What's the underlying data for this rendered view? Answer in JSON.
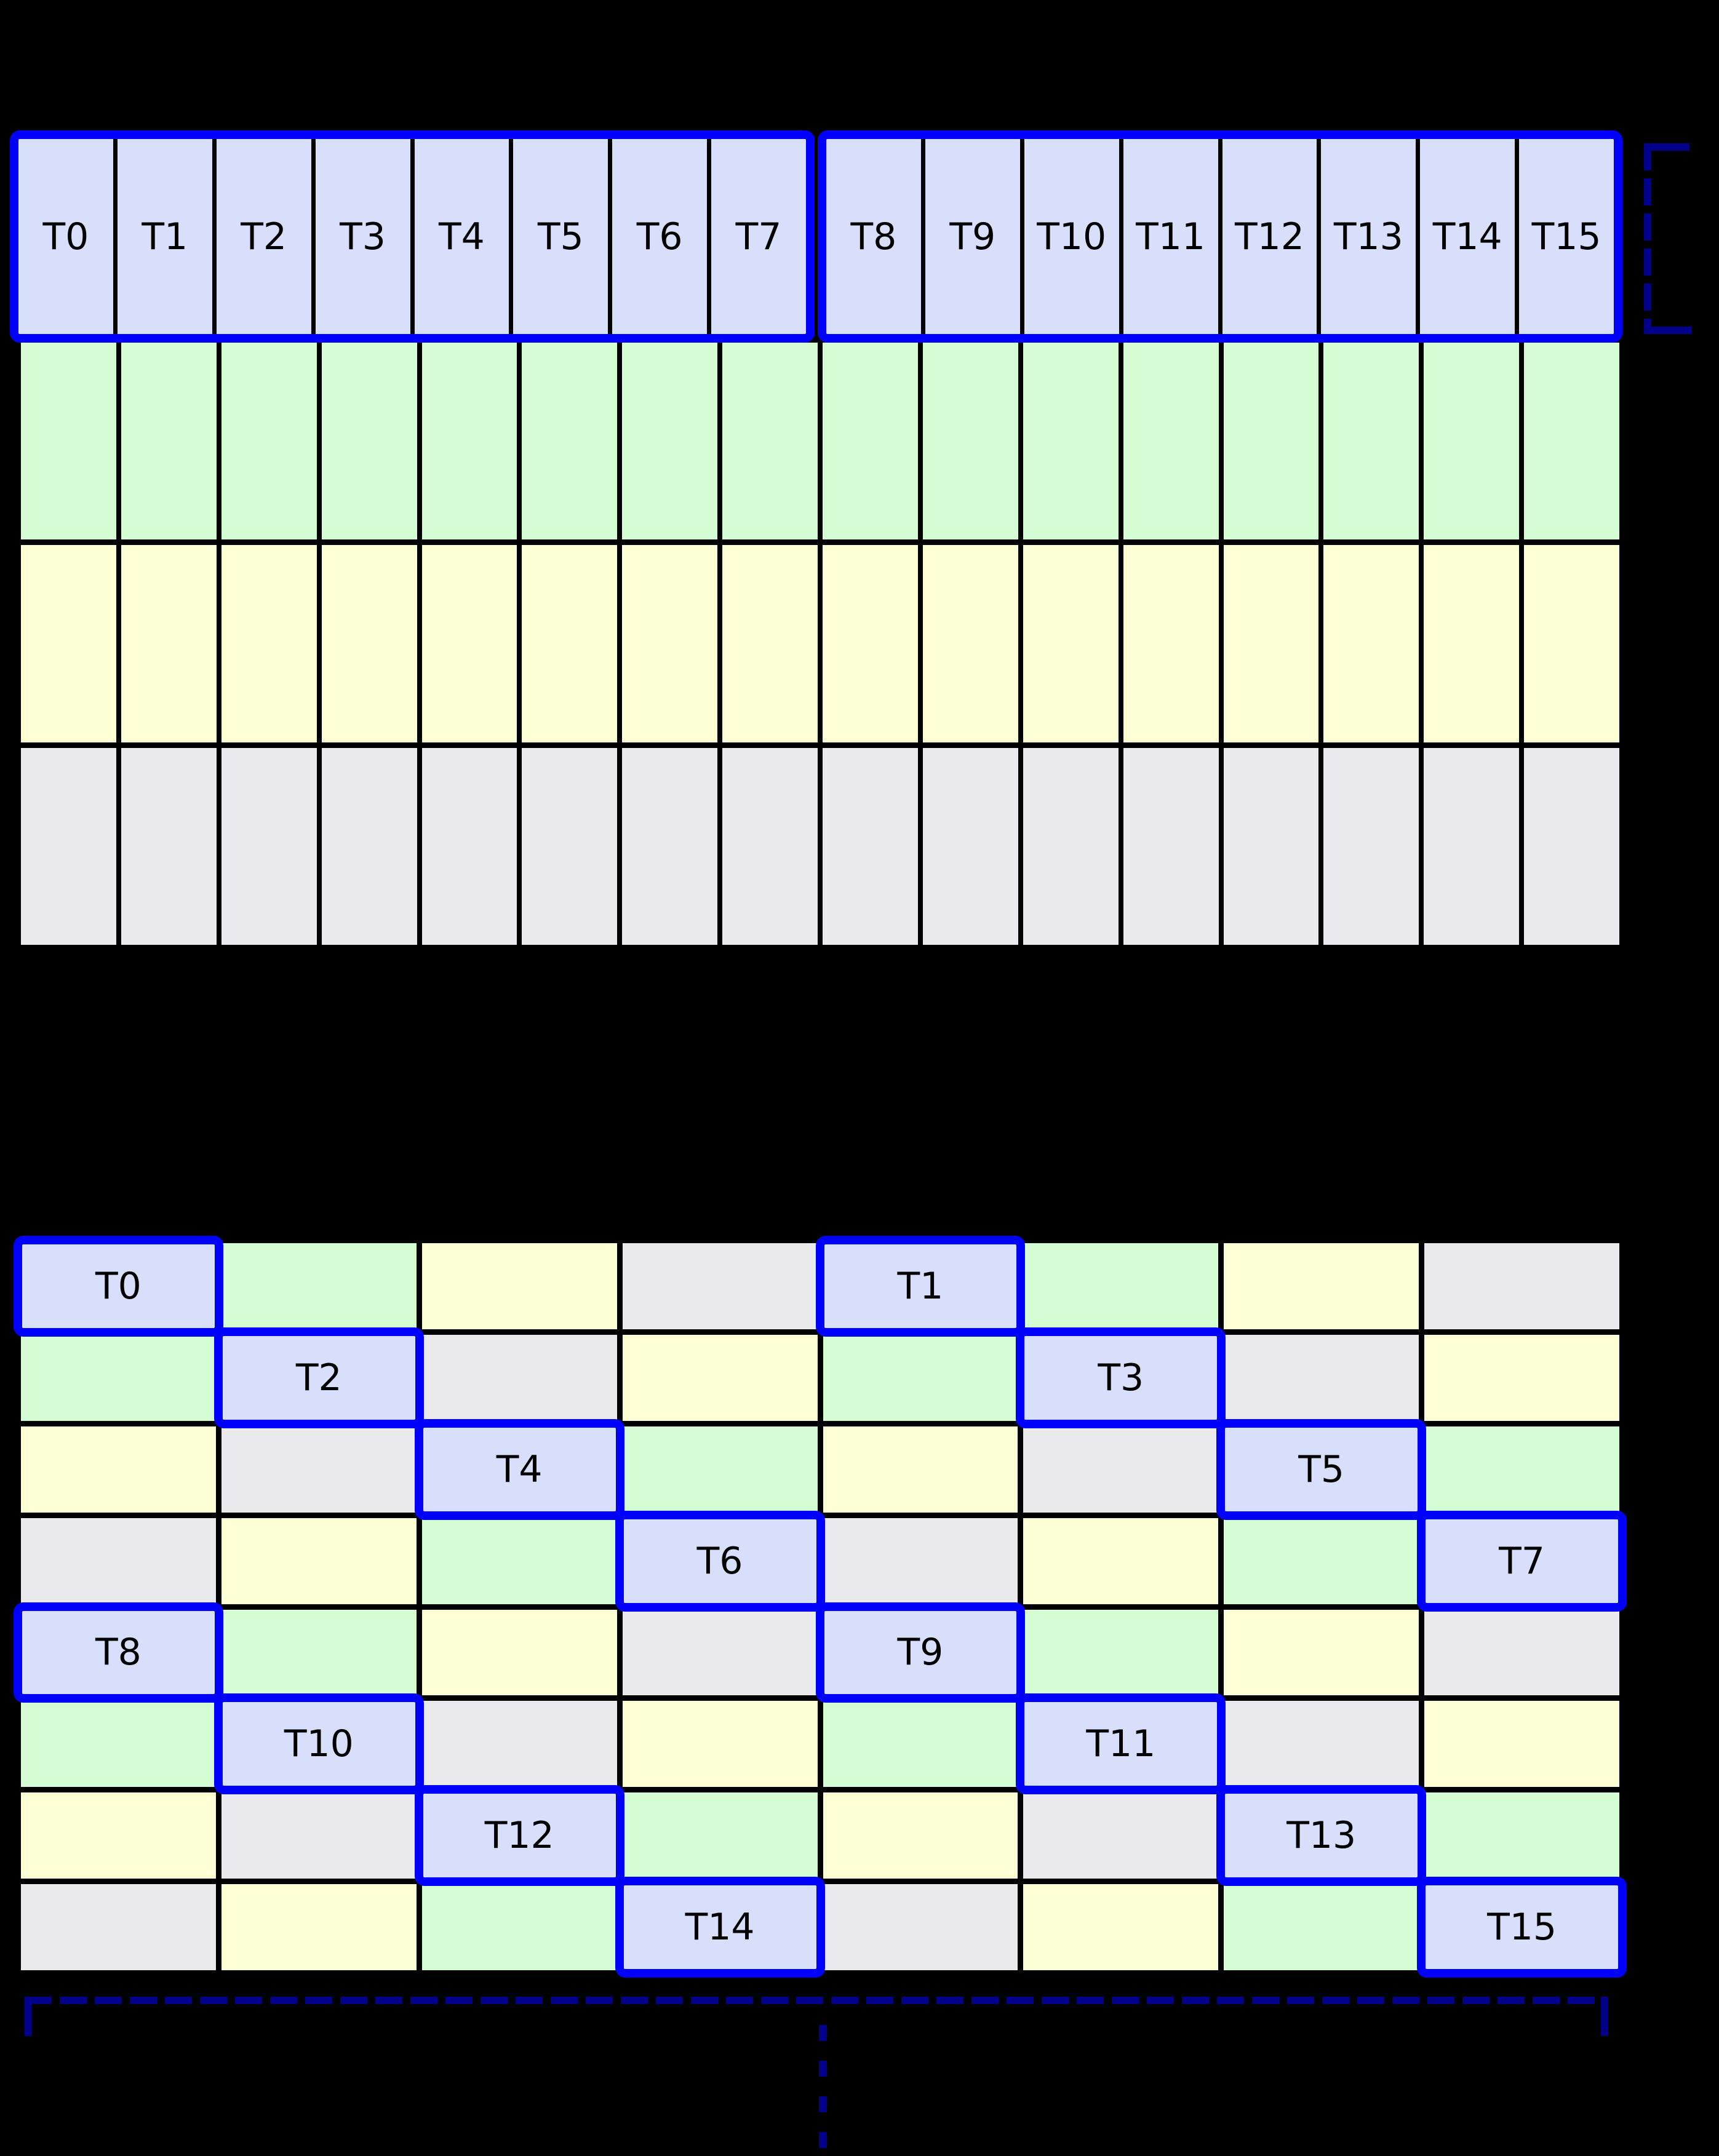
{
  "palette": {
    "cell_blue": "#d7dffb",
    "cell_green": "#d4fdd4",
    "cell_yellow": "#fdffd4",
    "cell_gray": "#eaeaec",
    "highlight_blue": "#0000ff",
    "grid_black": "#000000",
    "annotation_navy": "#00008b",
    "background": "#000000"
  },
  "top_grid": {
    "columns": 16,
    "warps": [
      {
        "threads": [
          "T0",
          "T1",
          "T2",
          "T3",
          "T4",
          "T5",
          "T6",
          "T7"
        ]
      },
      {
        "threads": [
          "T8",
          "T9",
          "T10",
          "T11",
          "T12",
          "T13",
          "T14",
          "T15"
        ]
      }
    ],
    "memory_rows": [
      "green",
      "yellow",
      "gray"
    ]
  },
  "bottom_grid": {
    "columns": 8,
    "rows": [
      [
        {
          "color": "blue",
          "label": "T0"
        },
        {
          "color": "green"
        },
        {
          "color": "yellow"
        },
        {
          "color": "gray"
        },
        {
          "color": "blue",
          "label": "T1"
        },
        {
          "color": "green"
        },
        {
          "color": "yellow"
        },
        {
          "color": "gray"
        }
      ],
      [
        {
          "color": "green"
        },
        {
          "color": "blue",
          "label": "T2"
        },
        {
          "color": "gray"
        },
        {
          "color": "yellow"
        },
        {
          "color": "green"
        },
        {
          "color": "blue",
          "label": "T3"
        },
        {
          "color": "gray"
        },
        {
          "color": "yellow"
        }
      ],
      [
        {
          "color": "yellow"
        },
        {
          "color": "gray"
        },
        {
          "color": "blue",
          "label": "T4"
        },
        {
          "color": "green"
        },
        {
          "color": "yellow"
        },
        {
          "color": "gray"
        },
        {
          "color": "blue",
          "label": "T5"
        },
        {
          "color": "green"
        }
      ],
      [
        {
          "color": "gray"
        },
        {
          "color": "yellow"
        },
        {
          "color": "green"
        },
        {
          "color": "blue",
          "label": "T6"
        },
        {
          "color": "gray"
        },
        {
          "color": "yellow"
        },
        {
          "color": "green"
        },
        {
          "color": "blue",
          "label": "T7"
        }
      ],
      [
        {
          "color": "blue",
          "label": "T8"
        },
        {
          "color": "green"
        },
        {
          "color": "yellow"
        },
        {
          "color": "gray"
        },
        {
          "color": "blue",
          "label": "T9"
        },
        {
          "color": "green"
        },
        {
          "color": "yellow"
        },
        {
          "color": "gray"
        }
      ],
      [
        {
          "color": "green"
        },
        {
          "color": "blue",
          "label": "T10"
        },
        {
          "color": "gray"
        },
        {
          "color": "yellow"
        },
        {
          "color": "green"
        },
        {
          "color": "blue",
          "label": "T11"
        },
        {
          "color": "gray"
        },
        {
          "color": "yellow"
        }
      ],
      [
        {
          "color": "yellow"
        },
        {
          "color": "gray"
        },
        {
          "color": "blue",
          "label": "T12"
        },
        {
          "color": "green"
        },
        {
          "color": "yellow"
        },
        {
          "color": "gray"
        },
        {
          "color": "blue",
          "label": "T13"
        },
        {
          "color": "green"
        }
      ],
      [
        {
          "color": "gray"
        },
        {
          "color": "yellow"
        },
        {
          "color": "green"
        },
        {
          "color": "blue",
          "label": "T14"
        },
        {
          "color": "gray"
        },
        {
          "color": "yellow"
        },
        {
          "color": "green"
        },
        {
          "color": "blue",
          "label": "T15"
        }
      ]
    ]
  },
  "annotations": {
    "right_bracket_style": "dashed",
    "bottom_bracket_style": "dashed",
    "vertical_ellipsis_dash_count": 4
  }
}
